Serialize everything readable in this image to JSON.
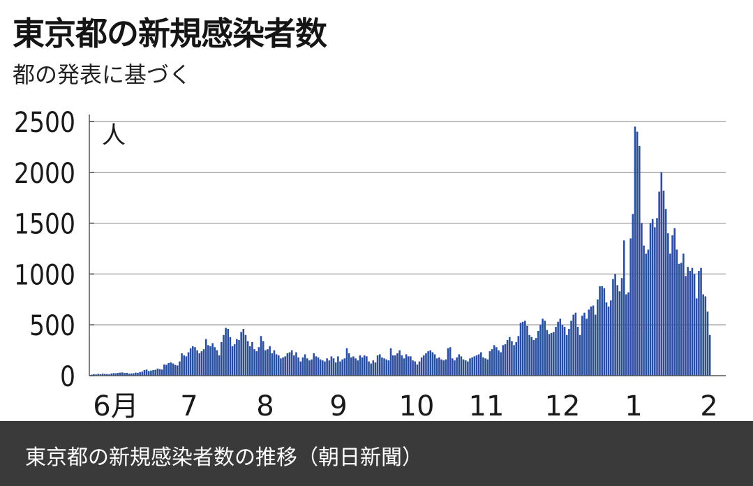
{
  "caption": "東京都の新規感染者数の推移（朝日新聞）",
  "colors": {
    "bar": "#2b4f9e",
    "grid": "#9a9a9a",
    "caption_bg": "#3a3a3a"
  },
  "chart_data": {
    "type": "bar",
    "title": "東京都の新規感染者数",
    "subtitle": "都の発表に基づく",
    "ylabel": "人",
    "ylim": [
      0,
      2500
    ],
    "yticks": [
      "0",
      "500",
      "1000",
      "1500",
      "2000",
      "2500"
    ],
    "xtick_labels": [
      "6月",
      "7",
      "8",
      "9",
      "10",
      "11",
      "12",
      "1",
      "2"
    ],
    "grid": true,
    "period": "2020-06 to 2021-02 (daily)",
    "values": [
      10,
      15,
      12,
      18,
      14,
      20,
      17,
      16,
      13,
      22,
      25,
      24,
      27,
      30,
      32,
      26,
      28,
      20,
      22,
      24,
      30,
      28,
      35,
      40,
      55,
      60,
      45,
      50,
      55,
      58,
      70,
      65,
      60,
      110,
      107,
      124,
      130,
      120,
      106,
      100,
      140,
      220,
      200,
      190,
      230,
      270,
      290,
      280,
      250,
      220,
      240,
      260,
      360,
      300,
      290,
      320,
      280,
      250,
      200,
      330,
      400,
      470,
      460,
      380,
      290,
      310,
      360,
      350,
      430,
      460,
      400,
      340,
      290,
      330,
      260,
      240,
      280,
      390,
      340,
      250,
      260,
      290,
      220,
      250,
      210,
      200,
      170,
      180,
      190,
      220,
      230,
      250,
      200,
      230,
      180,
      140,
      180,
      210,
      170,
      150,
      160,
      220,
      190,
      180,
      160,
      150,
      140,
      170,
      150,
      190,
      170,
      130,
      190,
      140,
      160,
      170,
      270,
      220,
      180,
      190,
      170,
      150,
      200,
      180,
      200,
      190,
      140,
      120,
      150,
      130,
      200,
      210,
      180,
      170,
      160,
      150,
      270,
      200,
      200,
      220,
      250,
      200,
      170,
      210,
      190,
      190,
      150,
      140,
      110,
      140,
      180,
      200,
      220,
      240,
      250,
      230,
      210,
      170,
      180,
      160,
      150,
      160,
      270,
      280,
      170,
      150,
      180,
      210,
      190,
      160,
      150,
      140,
      170,
      180,
      190,
      200,
      210,
      230,
      180,
      170,
      160,
      240,
      260,
      300,
      280,
      250,
      230,
      300,
      310,
      350,
      380,
      340,
      300,
      330,
      390,
      520,
      530,
      540,
      490,
      400,
      380,
      350,
      370,
      440,
      500,
      560,
      540,
      450,
      410,
      420,
      430,
      480,
      530,
      560,
      500,
      480,
      400,
      460,
      540,
      600,
      620,
      480,
      400,
      590,
      620,
      560,
      650,
      680,
      690,
      600,
      750,
      880,
      880,
      860,
      720,
      680,
      740,
      950,
      1000,
      890,
      830,
      960,
      1330,
      800,
      820,
      1350,
      1590,
      2450,
      2400,
      2260,
      1500,
      1280,
      1200,
      1240,
      1500,
      1540,
      1460,
      1550,
      1810,
      2000,
      1820,
      1640,
      1400,
      1200,
      1380,
      1450,
      1240,
      1100,
      1110,
      1200,
      980,
      1070,
      1030,
      1060,
      1000,
      760,
      1030,
      1060,
      800,
      780,
      630,
      400
    ]
  }
}
